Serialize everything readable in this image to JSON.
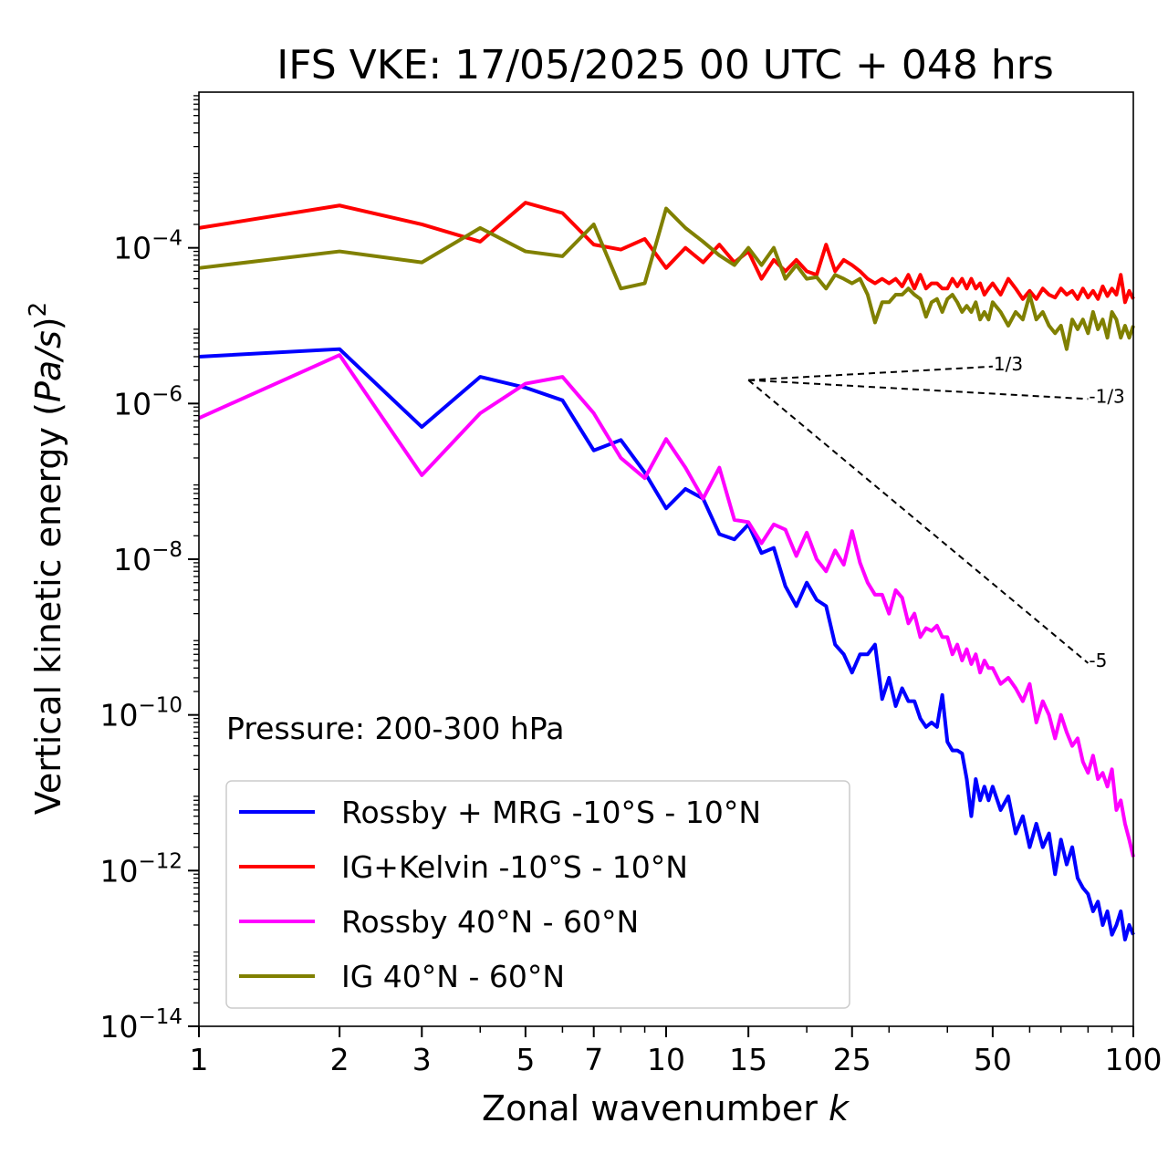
{
  "chart_data": {
    "type": "line",
    "title": "IFS VKE: 17/05/2025 00 UTC + 048 hrs",
    "xlabel": "Zonal wavenumber",
    "xlabel_var": "k",
    "ylabel": "Vertical kinetic energy (Pa/s)",
    "ylabel_parts": {
      "prefix": "Vertical kinetic energy (",
      "var": "Pa/s",
      "suffix": ")",
      "exp": "2"
    },
    "xscale": "log",
    "yscale": "log",
    "xlim": [
      1,
      100
    ],
    "ylim": [
      1e-14,
      0.01
    ],
    "xticks": [
      1,
      2,
      3,
      5,
      7,
      10,
      15,
      25,
      50,
      100
    ],
    "xtick_labels": [
      "1",
      "2",
      "3",
      "5",
      "7",
      "10",
      "15",
      "25",
      "50",
      "100"
    ],
    "yticks": [
      1e-14,
      1e-12,
      1e-10,
      1e-08,
      1e-06,
      0.0001
    ],
    "ytick_labels": [
      {
        "base": "10",
        "exp": "−14"
      },
      {
        "base": "10",
        "exp": "−12"
      },
      {
        "base": "10",
        "exp": "−10"
      },
      {
        "base": "10",
        "exp": "−8"
      },
      {
        "base": "10",
        "exp": "−6"
      },
      {
        "base": "10",
        "exp": "−4"
      }
    ],
    "grid": false,
    "legend_position": "lower-left",
    "annotation": "Pressure: 200-300 hPa",
    "reference_slopes": [
      {
        "label": "1/3",
        "slope": 0.3333,
        "x0": 15,
        "y0": 2e-06,
        "x1": 50
      },
      {
        "label": "-1/3",
        "slope": -0.3333,
        "x0": 15,
        "y0": 2e-06,
        "x1": 80
      },
      {
        "label": "-5",
        "slope": -5,
        "x0": 15,
        "y0": 2e-06,
        "x1": 80
      }
    ],
    "series": [
      {
        "name": "Rossby + MRG -10°S - 10°N",
        "color": "#0000ff",
        "x": [
          1,
          2,
          3,
          4,
          5,
          6,
          7,
          8,
          9,
          10,
          11,
          12,
          13,
          14,
          15,
          16,
          17,
          18,
          19,
          20,
          21,
          22,
          23,
          24,
          25,
          26,
          27,
          28,
          29,
          30,
          31,
          32,
          33,
          34,
          35,
          36,
          37,
          38,
          39,
          40,
          41,
          42,
          43,
          44,
          45,
          46,
          47,
          48,
          49,
          50,
          52,
          54,
          56,
          58,
          60,
          62,
          64,
          66,
          68,
          70,
          72,
          74,
          76,
          78,
          80,
          82,
          84,
          86,
          88,
          90,
          92,
          94,
          96,
          98,
          100
        ],
        "values": [
          4e-06,
          5e-06,
          5e-07,
          2.2e-06,
          1.6e-06,
          1.1e-06,
          2.5e-07,
          3.4e-07,
          1.3e-07,
          4.5e-08,
          8e-08,
          6e-08,
          2.1e-08,
          1.8e-08,
          2.8e-08,
          1.2e-08,
          1.4e-08,
          4.5e-09,
          2.5e-09,
          5e-09,
          3e-09,
          2.5e-09,
          8e-10,
          6e-10,
          3.5e-10,
          6e-10,
          6e-10,
          8e-10,
          1.6e-10,
          3e-10,
          1.3e-10,
          2.2e-10,
          1.5e-10,
          1.5e-10,
          9e-11,
          7e-11,
          8e-11,
          7e-11,
          1.8e-10,
          4.5e-11,
          3.5e-11,
          3.5e-11,
          3.2e-11,
          1.5e-11,
          5e-12,
          1.5e-11,
          8e-12,
          1.2e-11,
          8e-12,
          1.2e-11,
          6e-12,
          9e-12,
          3e-12,
          5e-12,
          2e-12,
          4e-12,
          2e-12,
          3e-12,
          9e-13,
          2.5e-12,
          1.2e-12,
          2e-12,
          8e-13,
          6e-13,
          5e-13,
          3e-13,
          4e-13,
          2e-13,
          3e-13,
          1.5e-13,
          2e-13,
          3e-13,
          1.3e-13,
          2e-13,
          1.5e-13
        ]
      },
      {
        "name": "IG+Kelvin -10°S - 10°N",
        "color": "#ff0000",
        "x": [
          1,
          2,
          3,
          4,
          5,
          6,
          7,
          8,
          9,
          10,
          11,
          12,
          13,
          14,
          15,
          16,
          17,
          18,
          19,
          20,
          21,
          22,
          23,
          24,
          25,
          26,
          27,
          28,
          29,
          30,
          31,
          32,
          33,
          34,
          35,
          36,
          37,
          38,
          39,
          40,
          41,
          42,
          43,
          44,
          45,
          46,
          47,
          48,
          49,
          50,
          52,
          54,
          56,
          58,
          60,
          62,
          64,
          66,
          68,
          70,
          72,
          74,
          76,
          78,
          80,
          82,
          84,
          86,
          88,
          90,
          92,
          94,
          96,
          98,
          100
        ],
        "values": [
          0.00018,
          0.00035,
          0.0002,
          0.00012,
          0.00038,
          0.00028,
          0.00011,
          9.5e-05,
          0.00013,
          5.5e-05,
          0.0001,
          6.5e-05,
          0.00011,
          6.5e-05,
          9e-05,
          4e-05,
          7e-05,
          5e-05,
          7e-05,
          5e-05,
          4.5e-05,
          0.00011,
          5e-05,
          7e-05,
          6e-05,
          5e-05,
          4e-05,
          3.5e-05,
          4e-05,
          3.5e-05,
          4e-05,
          3.2e-05,
          4.5e-05,
          3e-05,
          4.5e-05,
          3e-05,
          3.5e-05,
          3.5e-05,
          3e-05,
          3e-05,
          4e-05,
          3.2e-05,
          4e-05,
          3e-05,
          4e-05,
          3e-05,
          3.5e-05,
          2.5e-05,
          3e-05,
          3.5e-05,
          2.5e-05,
          4e-05,
          3e-05,
          2.2e-05,
          2.8e-05,
          2.2e-05,
          3e-05,
          2.5e-05,
          2.3e-05,
          3e-05,
          2.5e-05,
          2.8e-05,
          2.2e-05,
          3e-05,
          2.3e-05,
          2.8e-05,
          2.2e-05,
          3.2e-05,
          2.4e-05,
          3e-05,
          2.5e-05,
          4.5e-05,
          2e-05,
          2.8e-05,
          2.2e-05
        ]
      },
      {
        "name": "Rossby 40°N - 60°N",
        "color": "#ff00ff",
        "x": [
          1,
          2,
          3,
          4,
          5,
          6,
          7,
          8,
          9,
          10,
          11,
          12,
          13,
          14,
          15,
          16,
          17,
          18,
          19,
          20,
          21,
          22,
          23,
          24,
          25,
          26,
          27,
          28,
          29,
          30,
          31,
          32,
          33,
          34,
          35,
          36,
          37,
          38,
          39,
          40,
          41,
          42,
          43,
          44,
          45,
          46,
          47,
          48,
          49,
          50,
          52,
          54,
          56,
          58,
          60,
          62,
          64,
          66,
          68,
          70,
          72,
          74,
          76,
          78,
          80,
          82,
          84,
          86,
          88,
          90,
          92,
          94,
          96,
          98,
          100
        ],
        "values": [
          6.5e-07,
          4.2e-06,
          1.2e-07,
          7.5e-07,
          1.8e-06,
          2.2e-06,
          7.5e-07,
          2e-07,
          1.1e-07,
          3.5e-07,
          1.5e-07,
          6e-08,
          1.5e-07,
          3.2e-08,
          3e-08,
          1.6e-08,
          2.8e-08,
          2.4e-08,
          1.1e-08,
          2.2e-08,
          1e-08,
          7e-09,
          1.3e-08,
          8.5e-09,
          2.3e-08,
          9e-09,
          5e-09,
          3.5e-09,
          3.5e-09,
          2e-09,
          4e-09,
          3.2e-09,
          1.5e-09,
          2e-09,
          1e-09,
          1.3e-09,
          1.2e-09,
          1.4e-09,
          1e-09,
          1e-09,
          6e-10,
          8e-10,
          5e-10,
          7e-10,
          4.5e-10,
          6e-10,
          3.5e-10,
          5e-10,
          4e-10,
          4e-10,
          2.5e-10,
          3e-10,
          2.2e-10,
          1.5e-10,
          2.5e-10,
          8e-11,
          1.5e-10,
          1e-10,
          5e-11,
          1e-10,
          6e-11,
          4e-11,
          5e-11,
          2.5e-11,
          1.8e-11,
          3e-11,
          1.5e-11,
          1.8e-11,
          1.2e-11,
          2e-11,
          6e-12,
          8e-12,
          4e-12,
          2.5e-12,
          1.5e-12
        ]
      },
      {
        "name": "IG 40°N - 60°N",
        "color": "#808000",
        "x": [
          1,
          2,
          3,
          4,
          5,
          6,
          7,
          8,
          9,
          10,
          11,
          12,
          13,
          14,
          15,
          16,
          17,
          18,
          19,
          20,
          21,
          22,
          23,
          24,
          25,
          26,
          27,
          28,
          29,
          30,
          31,
          32,
          33,
          34,
          35,
          36,
          37,
          38,
          39,
          40,
          41,
          42,
          43,
          44,
          45,
          46,
          47,
          48,
          49,
          50,
          52,
          54,
          56,
          58,
          60,
          62,
          64,
          66,
          68,
          70,
          72,
          74,
          76,
          78,
          80,
          82,
          84,
          86,
          88,
          90,
          92,
          94,
          96,
          98,
          100
        ],
        "values": [
          5.5e-05,
          9e-05,
          6.5e-05,
          0.00018,
          9e-05,
          7.8e-05,
          0.0002,
          3e-05,
          3.5e-05,
          0.00032,
          0.00018,
          0.00012,
          8e-05,
          6e-05,
          0.0001,
          6e-05,
          0.0001,
          4e-05,
          6e-05,
          4e-05,
          4.2e-05,
          3e-05,
          4.5e-05,
          4e-05,
          3.5e-05,
          4e-05,
          2.5e-05,
          1.1e-05,
          2e-05,
          2e-05,
          2.5e-05,
          2.5e-05,
          3e-05,
          2.5e-05,
          2.2e-05,
          1.3e-05,
          2e-05,
          2.2e-05,
          1.5e-05,
          2.2e-05,
          2.5e-05,
          2e-05,
          1.5e-05,
          1.8e-05,
          1.5e-05,
          2e-05,
          1.2e-05,
          1.5e-05,
          1.2e-05,
          2e-05,
          1.5e-05,
          1e-05,
          1.5e-05,
          1.2e-05,
          2.5e-05,
          1.2e-05,
          1.5e-05,
          1e-05,
          8e-06,
          1e-05,
          5e-06,
          1.2e-05,
          9e-06,
          1.2e-05,
          8e-06,
          1.5e-05,
          9e-06,
          1.2e-05,
          7e-06,
          1.5e-05,
          1.2e-05,
          7e-06,
          1e-05,
          7e-06,
          1e-05
        ]
      }
    ]
  }
}
